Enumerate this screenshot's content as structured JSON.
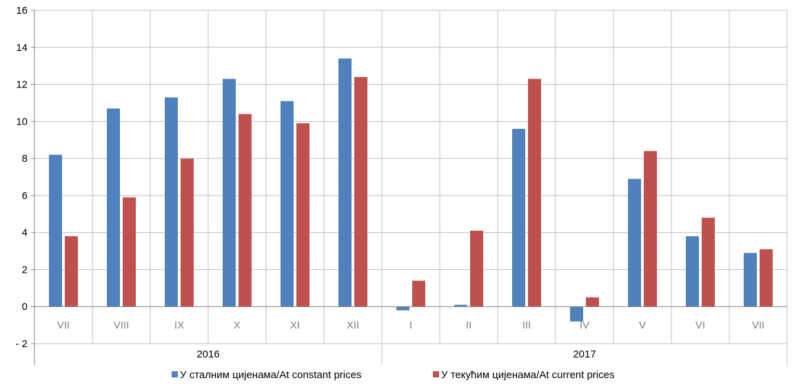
{
  "chart_data": {
    "type": "bar",
    "categories": [
      "VII",
      "VIII",
      "IX",
      "X",
      "XI",
      "XII",
      "I",
      "II",
      "III",
      "IV",
      "V",
      "VI",
      "VII"
    ],
    "groups": [
      {
        "label": "2016",
        "from": 0,
        "to": 5
      },
      {
        "label": "2017",
        "from": 6,
        "to": 12
      }
    ],
    "series": [
      {
        "name": "У сталним цијенама/At constant prices",
        "color": "#4f81bd",
        "values": [
          8.2,
          10.7,
          11.3,
          12.3,
          11.1,
          13.4,
          -0.2,
          0.1,
          9.6,
          -0.8,
          6.9,
          3.8,
          2.9
        ]
      },
      {
        "name": "У текућим цијенама/At current prices",
        "color": "#c0504d",
        "values": [
          3.8,
          5.9,
          8.0,
          10.4,
          9.9,
          12.4,
          1.4,
          4.1,
          12.3,
          0.5,
          8.4,
          4.8,
          3.1
        ]
      }
    ],
    "yticks": [
      "16",
      "14",
      "12",
      "10",
      "8",
      "6",
      "4",
      "2",
      "0",
      "- 2"
    ],
    "ylim": [
      -2,
      16
    ],
    "grid": true,
    "legend_position": "bottom"
  }
}
